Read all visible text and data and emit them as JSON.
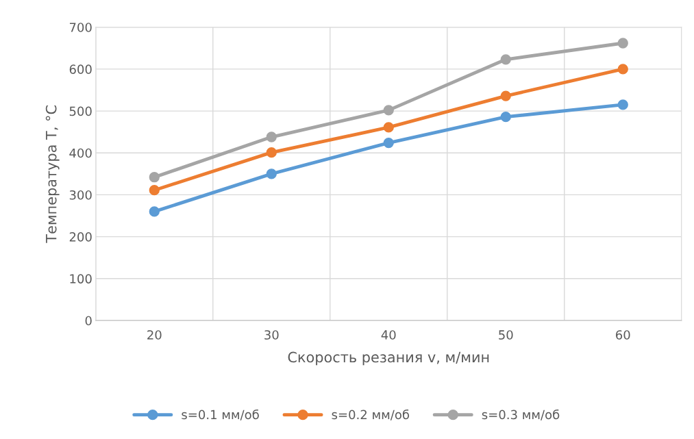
{
  "chart_data": {
    "type": "line",
    "xlabel": "Скорость резания v, м/мин",
    "ylabel": "Температура T, °C",
    "categories": [
      "20",
      "30",
      "40",
      "50",
      "60"
    ],
    "series": [
      {
        "name": "s=0.1 мм/об",
        "color": "#5b9bd5",
        "values": [
          260,
          350,
          424,
          486,
          515
        ]
      },
      {
        "name": "s=0.2 мм/об",
        "color": "#ed7d31",
        "values": [
          311,
          401,
          461,
          536,
          600
        ]
      },
      {
        "name": "s=0.3 мм/об",
        "color": "#a5a5a5",
        "values": [
          342,
          438,
          502,
          623,
          662
        ]
      }
    ],
    "ylim": [
      0,
      700
    ],
    "yticks": [
      0,
      100,
      200,
      300,
      400,
      500,
      600,
      700
    ],
    "grid": true,
    "legend": "bottom",
    "marker": "circle",
    "line_style": "solid"
  }
}
